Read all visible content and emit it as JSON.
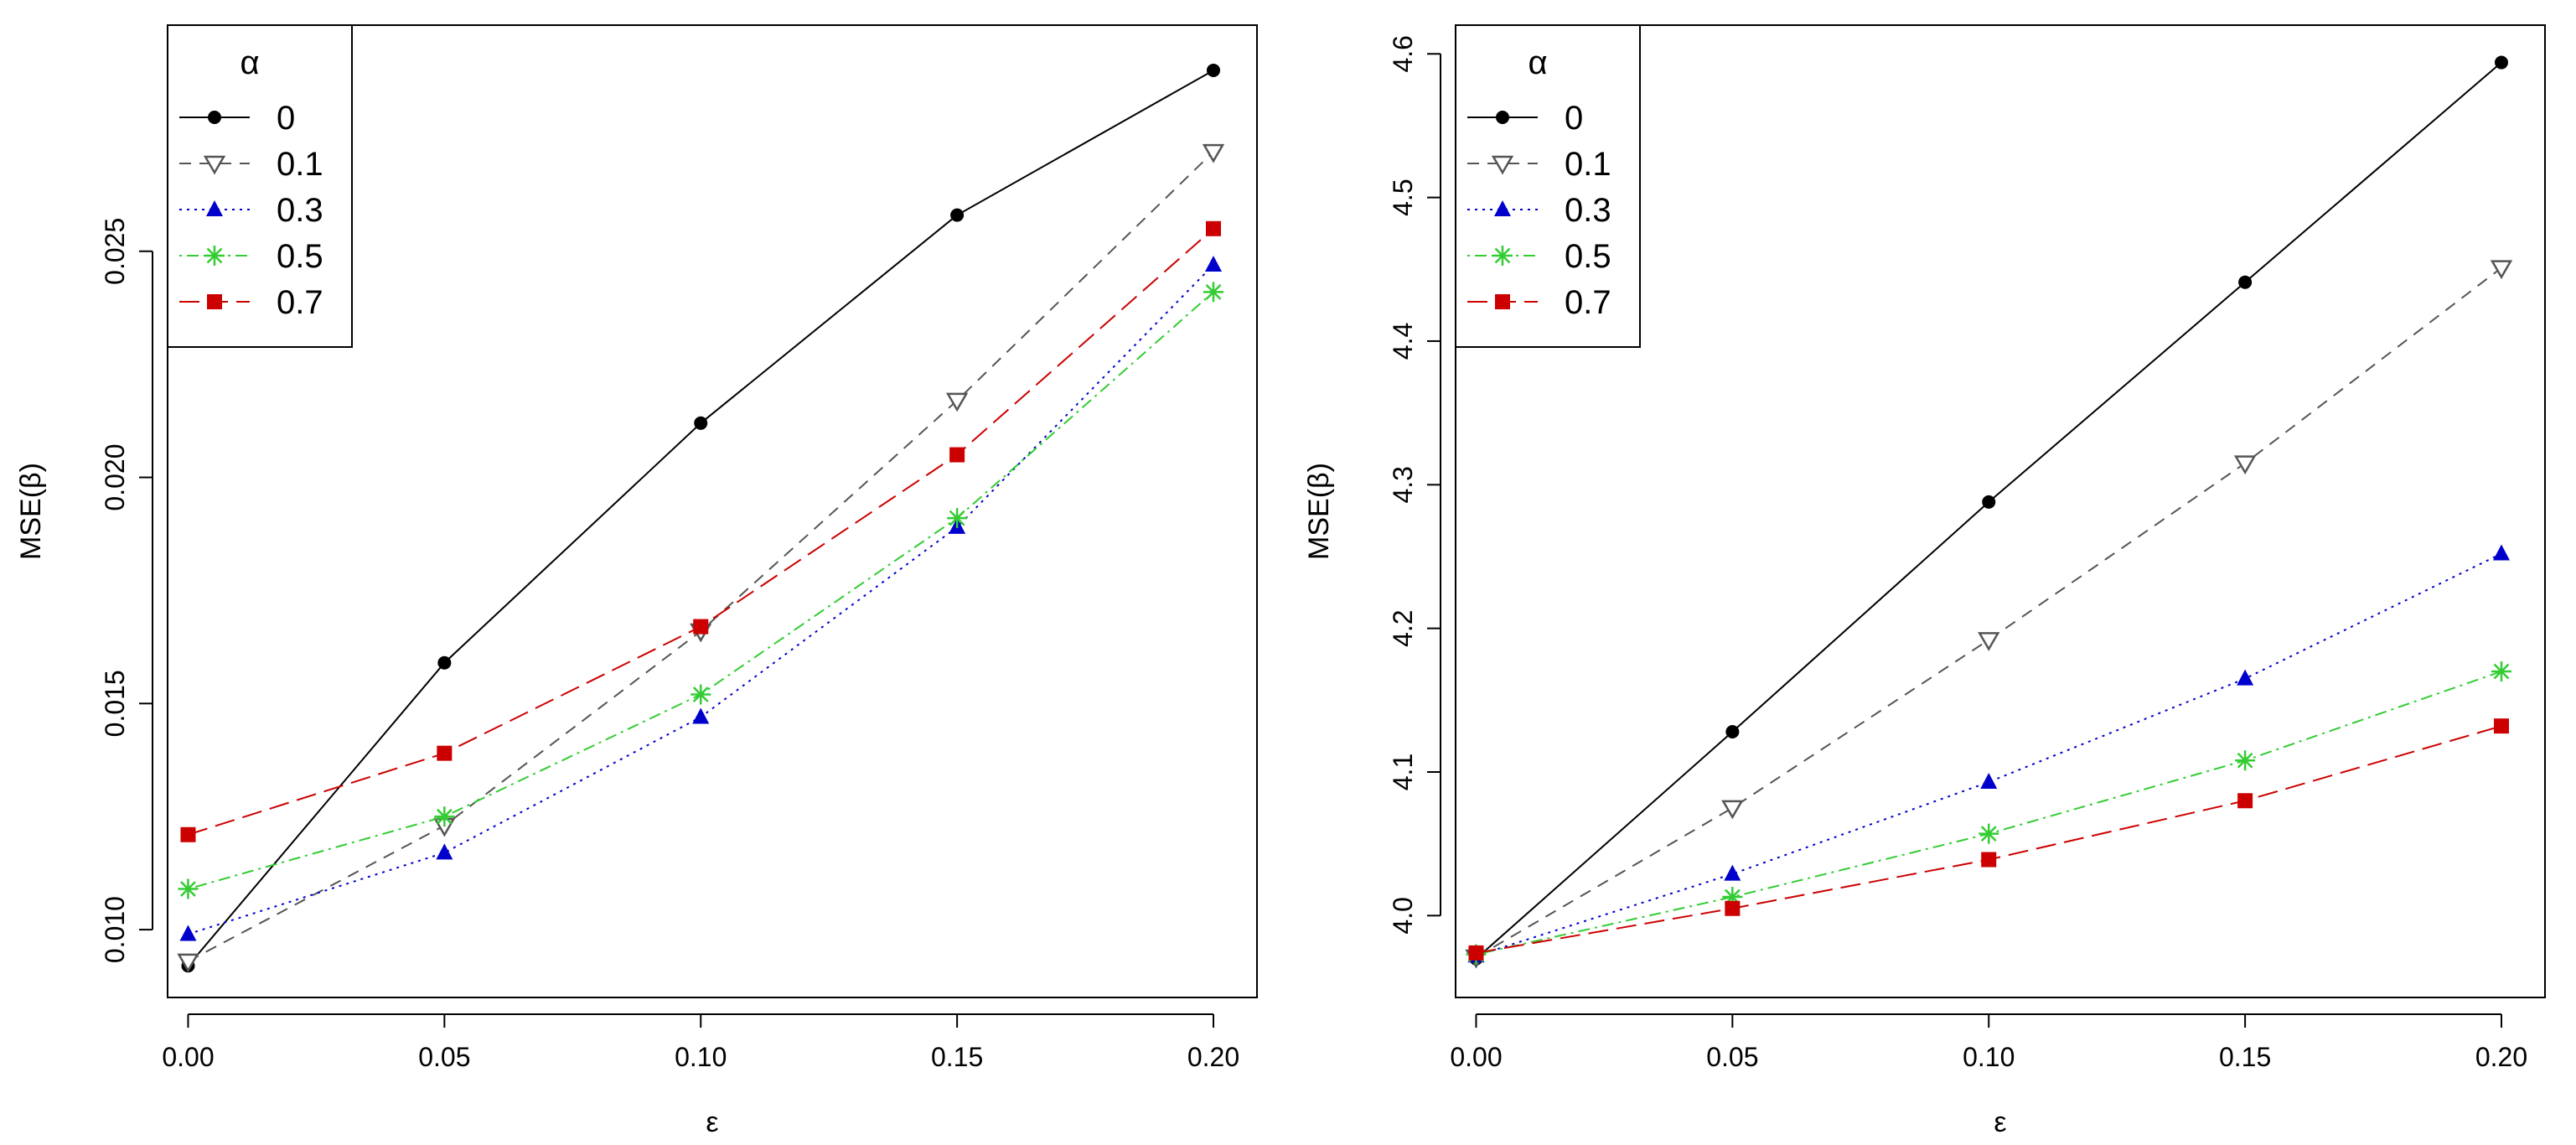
{
  "chart_data": [
    {
      "type": "line",
      "title": "",
      "xlabel": "ε",
      "ylabel": "MSE(β)",
      "x": [
        0.0,
        0.05,
        0.1,
        0.15,
        0.2
      ],
      "x_tick_labels": [
        "0.00",
        "0.05",
        "0.10",
        "0.15",
        "0.20"
      ],
      "xlim": [
        -0.004,
        0.2085
      ],
      "y_ticks": [
        0.01,
        0.015,
        0.02,
        0.025
      ],
      "y_tick_labels": [
        "0.010",
        "0.015",
        "0.020",
        "0.025"
      ],
      "ylim": [
        0.0085,
        0.03
      ],
      "legend_title": "α",
      "legend_position": "top-left",
      "series": [
        {
          "name": "0",
          "values": [
            0.0092,
            0.0159,
            0.0212,
            0.0258,
            0.029
          ],
          "color": "#000000",
          "dash": "solid",
          "marker": "circle"
        },
        {
          "name": "0.1",
          "values": [
            0.0093,
            0.0123,
            0.0166,
            0.0217,
            0.0272
          ],
          "color": "#555555",
          "dash": "dashed",
          "marker": "triangle-down-open"
        },
        {
          "name": "0.3",
          "values": [
            0.0099,
            0.0117,
            0.0147,
            0.0189,
            0.0247
          ],
          "color": "#0000CD",
          "dash": "dotted",
          "marker": "triangle-up"
        },
        {
          "name": "0.5",
          "values": [
            0.0109,
            0.0125,
            0.0152,
            0.0191,
            0.0241
          ],
          "color": "#33CC33",
          "dash": "dotdash",
          "marker": "asterisk"
        },
        {
          "name": "0.7",
          "values": [
            0.0121,
            0.0139,
            0.0167,
            0.0205,
            0.0255
          ],
          "color": "#CC0000",
          "dash": "longdash",
          "marker": "square"
        }
      ]
    },
    {
      "type": "line",
      "title": "",
      "xlabel": "ε",
      "ylabel": "MSE(β)",
      "x": [
        0.0,
        0.05,
        0.1,
        0.15,
        0.2
      ],
      "x_tick_labels": [
        "0.00",
        "0.05",
        "0.10",
        "0.15",
        "0.20"
      ],
      "xlim": [
        -0.004,
        0.2085
      ],
      "y_ticks": [
        4.0,
        4.1,
        4.2,
        4.3,
        4.4,
        4.5,
        4.6
      ],
      "y_tick_labels": [
        "4.0",
        "4.1",
        "4.2",
        "4.3",
        "4.4",
        "4.5",
        "4.6"
      ],
      "ylim": [
        3.943,
        4.62
      ],
      "legend_title": "α",
      "legend_position": "top-left",
      "series": [
        {
          "name": "0",
          "values": [
            3.97,
            4.128,
            4.288,
            4.441,
            4.594
          ],
          "color": "#000000",
          "dash": "solid",
          "marker": "circle"
        },
        {
          "name": "0.1",
          "values": [
            3.971,
            4.075,
            4.192,
            4.315,
            4.451
          ],
          "color": "#555555",
          "dash": "dashed",
          "marker": "triangle-down-open"
        },
        {
          "name": "0.3",
          "values": [
            3.972,
            4.029,
            4.093,
            4.165,
            4.252
          ],
          "color": "#0000CD",
          "dash": "dotted",
          "marker": "triangle-up"
        },
        {
          "name": "0.5",
          "values": [
            3.973,
            4.013,
            4.057,
            4.108,
            4.17
          ],
          "color": "#33CC33",
          "dash": "dotdash",
          "marker": "asterisk"
        },
        {
          "name": "0.7",
          "values": [
            3.974,
            4.005,
            4.039,
            4.08,
            4.132
          ],
          "color": "#CC0000",
          "dash": "longdash",
          "marker": "square"
        }
      ]
    }
  ]
}
